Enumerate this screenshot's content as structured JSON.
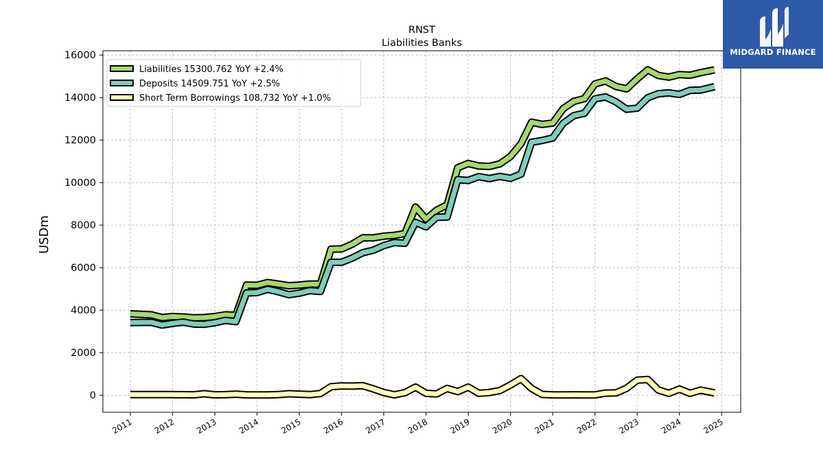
{
  "title": "RNST",
  "subtitle": "Liabilities Banks",
  "brand": {
    "name": "MIDGARD FINANCE",
    "color": "#2f5aa8"
  },
  "chart_data": {
    "type": "line",
    "title": "RNST",
    "subtitle": "Liabilities Banks",
    "xlabel": "",
    "ylabel": "USDm",
    "xlim": [
      2010.35,
      2025.45
    ],
    "ylim": [
      -800,
      16200
    ],
    "xticks": [
      "2011",
      "2012",
      "2013",
      "2014",
      "2015",
      "2016",
      "2017",
      "2018",
      "2019",
      "2020",
      "2021",
      "2022",
      "2023",
      "2024",
      "2025"
    ],
    "yticks": [
      0,
      2000,
      4000,
      6000,
      8000,
      10000,
      12000,
      14000,
      16000
    ],
    "grid": true,
    "legend_position": "top-left",
    "series": [
      {
        "name": "Liabilities",
        "legend": "Liabilities  15300.762 YoY +2.4%",
        "color": "#a6d86e",
        "points": [
          [
            2011.0,
            3830
          ],
          [
            2011.5,
            3780
          ],
          [
            2011.75,
            3650
          ],
          [
            2012.0,
            3700
          ],
          [
            2012.25,
            3680
          ],
          [
            2012.5,
            3640
          ],
          [
            2012.75,
            3650
          ],
          [
            2013.0,
            3700
          ],
          [
            2013.25,
            3780
          ],
          [
            2013.5,
            3760
          ],
          [
            2013.75,
            5180
          ],
          [
            2014.0,
            5170
          ],
          [
            2014.25,
            5300
          ],
          [
            2014.5,
            5230
          ],
          [
            2014.75,
            5150
          ],
          [
            2015.0,
            5180
          ],
          [
            2015.25,
            5230
          ],
          [
            2015.5,
            5230
          ],
          [
            2015.75,
            6870
          ],
          [
            2016.0,
            6880
          ],
          [
            2016.25,
            7100
          ],
          [
            2016.5,
            7400
          ],
          [
            2016.75,
            7400
          ],
          [
            2017.0,
            7480
          ],
          [
            2017.25,
            7520
          ],
          [
            2017.5,
            7600
          ],
          [
            2017.75,
            8850
          ],
          [
            2018.0,
            8280
          ],
          [
            2018.25,
            8700
          ],
          [
            2018.5,
            8950
          ],
          [
            2018.75,
            10700
          ],
          [
            2019.0,
            10900
          ],
          [
            2019.25,
            10780
          ],
          [
            2019.5,
            10760
          ],
          [
            2019.75,
            10880
          ],
          [
            2020.0,
            11230
          ],
          [
            2020.25,
            11830
          ],
          [
            2020.5,
            12840
          ],
          [
            2020.75,
            12740
          ],
          [
            2021.0,
            12800
          ],
          [
            2021.25,
            13480
          ],
          [
            2021.5,
            13820
          ],
          [
            2021.75,
            13950
          ],
          [
            2022.0,
            14640
          ],
          [
            2022.25,
            14780
          ],
          [
            2022.5,
            14520
          ],
          [
            2022.75,
            14410
          ],
          [
            2023.0,
            14880
          ],
          [
            2023.25,
            15300
          ],
          [
            2023.5,
            15040
          ],
          [
            2023.75,
            14960
          ],
          [
            2024.0,
            15080
          ],
          [
            2024.25,
            15050
          ],
          [
            2024.5,
            15170
          ],
          [
            2024.83,
            15300
          ]
        ]
      },
      {
        "name": "Deposits",
        "legend": "Deposits  14509.751 YoY +2.5%",
        "color": "#7ecdbb",
        "points": [
          [
            2011.0,
            3420
          ],
          [
            2011.5,
            3430
          ],
          [
            2011.75,
            3300
          ],
          [
            2012.0,
            3380
          ],
          [
            2012.25,
            3440
          ],
          [
            2012.5,
            3350
          ],
          [
            2012.75,
            3340
          ],
          [
            2013.0,
            3410
          ],
          [
            2013.25,
            3520
          ],
          [
            2013.5,
            3460
          ],
          [
            2013.75,
            4810
          ],
          [
            2014.0,
            4830
          ],
          [
            2014.25,
            4980
          ],
          [
            2014.5,
            4870
          ],
          [
            2014.75,
            4730
          ],
          [
            2015.0,
            4800
          ],
          [
            2015.25,
            4920
          ],
          [
            2015.5,
            4880
          ],
          [
            2015.75,
            6250
          ],
          [
            2016.0,
            6250
          ],
          [
            2016.25,
            6450
          ],
          [
            2016.5,
            6700
          ],
          [
            2016.75,
            6820
          ],
          [
            2017.0,
            7040
          ],
          [
            2017.25,
            7180
          ],
          [
            2017.5,
            7150
          ],
          [
            2017.75,
            8130
          ],
          [
            2018.0,
            7920
          ],
          [
            2018.25,
            8370
          ],
          [
            2018.5,
            8380
          ],
          [
            2018.75,
            10140
          ],
          [
            2019.0,
            10100
          ],
          [
            2019.25,
            10280
          ],
          [
            2019.5,
            10190
          ],
          [
            2019.75,
            10290
          ],
          [
            2020.0,
            10200
          ],
          [
            2020.25,
            10400
          ],
          [
            2020.5,
            11900
          ],
          [
            2020.75,
            11980
          ],
          [
            2021.0,
            12100
          ],
          [
            2021.25,
            12790
          ],
          [
            2021.5,
            13150
          ],
          [
            2021.75,
            13260
          ],
          [
            2022.0,
            13940
          ],
          [
            2022.25,
            14030
          ],
          [
            2022.5,
            13790
          ],
          [
            2022.75,
            13450
          ],
          [
            2023.0,
            13500
          ],
          [
            2023.25,
            13990
          ],
          [
            2023.5,
            14180
          ],
          [
            2023.75,
            14220
          ],
          [
            2024.0,
            14150
          ],
          [
            2024.25,
            14340
          ],
          [
            2024.5,
            14350
          ],
          [
            2024.83,
            14510
          ]
        ]
      },
      {
        "name": "Short Term Borrowings",
        "legend": "Short Term Borrowings  108.732 YoY +1.0%",
        "color": "#ffffbb",
        "points": [
          [
            2011.0,
            30
          ],
          [
            2011.5,
            30
          ],
          [
            2011.75,
            30
          ],
          [
            2012.0,
            30
          ],
          [
            2012.25,
            25
          ],
          [
            2012.5,
            20
          ],
          [
            2012.75,
            70
          ],
          [
            2013.0,
            20
          ],
          [
            2013.25,
            25
          ],
          [
            2013.5,
            50
          ],
          [
            2013.75,
            20
          ],
          [
            2014.0,
            15
          ],
          [
            2014.25,
            15
          ],
          [
            2014.5,
            30
          ],
          [
            2014.75,
            70
          ],
          [
            2015.0,
            50
          ],
          [
            2015.25,
            30
          ],
          [
            2015.5,
            80
          ],
          [
            2015.75,
            400
          ],
          [
            2016.0,
            440
          ],
          [
            2016.25,
            430
          ],
          [
            2016.5,
            450
          ],
          [
            2016.75,
            300
          ],
          [
            2017.0,
            130
          ],
          [
            2017.25,
            20
          ],
          [
            2017.5,
            120
          ],
          [
            2017.75,
            380
          ],
          [
            2018.0,
            90
          ],
          [
            2018.25,
            60
          ],
          [
            2018.5,
            320
          ],
          [
            2018.75,
            170
          ],
          [
            2019.0,
            380
          ],
          [
            2019.25,
            90
          ],
          [
            2019.5,
            130
          ],
          [
            2019.75,
            220
          ],
          [
            2020.0,
            480
          ],
          [
            2020.25,
            780
          ],
          [
            2020.5,
            320
          ],
          [
            2020.75,
            40
          ],
          [
            2021.0,
            20
          ],
          [
            2021.25,
            15
          ],
          [
            2021.5,
            20
          ],
          [
            2021.75,
            15
          ],
          [
            2022.0,
            15
          ],
          [
            2022.25,
            100
          ],
          [
            2022.5,
            110
          ],
          [
            2022.75,
            330
          ],
          [
            2023.0,
            710
          ],
          [
            2023.25,
            740
          ],
          [
            2023.5,
            250
          ],
          [
            2023.75,
            90
          ],
          [
            2024.0,
            290
          ],
          [
            2024.25,
            90
          ],
          [
            2024.5,
            240
          ],
          [
            2024.83,
            109
          ]
        ]
      }
    ]
  }
}
